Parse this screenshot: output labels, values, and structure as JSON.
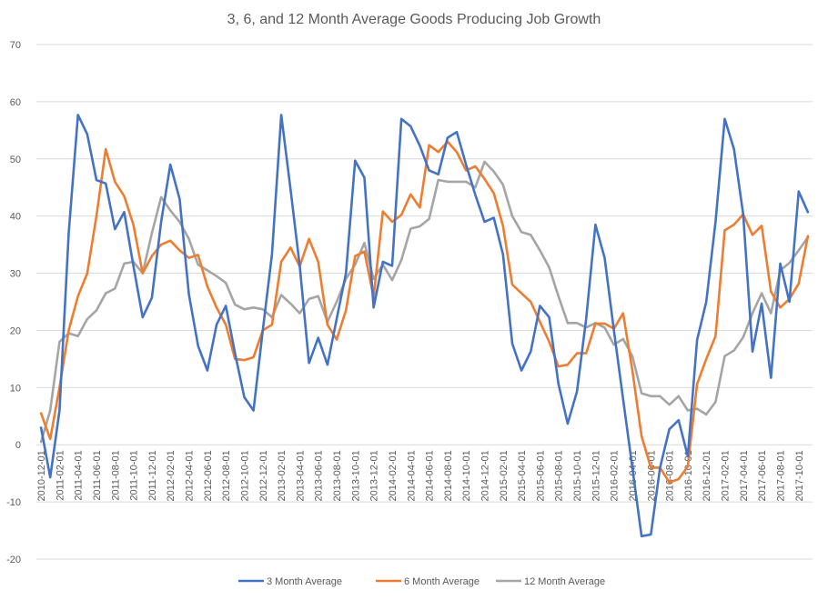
{
  "chart_data": {
    "type": "line",
    "title": "3, 6, and 12 Month Average Goods Producing Job Growth",
    "xlabel": "",
    "ylabel": "",
    "ylim": [
      -20,
      70
    ],
    "yticks": [
      -20,
      -10,
      0,
      10,
      20,
      30,
      40,
      50,
      60,
      70
    ],
    "grid": true,
    "legend_position": "bottom",
    "colors": {
      "3 Month Average": "#4472C4",
      "6 Month Average": "#ED7D31",
      "12 Month Average": "#A5A5A5",
      "grid": "#D9D9D9",
      "text": "#595959"
    },
    "x": [
      "2010-12-01",
      "2011-01-01",
      "2011-02-01",
      "2011-03-01",
      "2011-04-01",
      "2011-05-01",
      "2011-06-01",
      "2011-07-01",
      "2011-08-01",
      "2011-09-01",
      "2011-10-01",
      "2011-11-01",
      "2011-12-01",
      "2012-01-01",
      "2012-02-01",
      "2012-03-01",
      "2012-04-01",
      "2012-05-01",
      "2012-06-01",
      "2012-07-01",
      "2012-08-01",
      "2012-09-01",
      "2012-10-01",
      "2012-11-01",
      "2012-12-01",
      "2013-01-01",
      "2013-02-01",
      "2013-03-01",
      "2013-04-01",
      "2013-05-01",
      "2013-06-01",
      "2013-07-01",
      "2013-08-01",
      "2013-09-01",
      "2013-10-01",
      "2013-11-01",
      "2013-12-01",
      "2014-01-01",
      "2014-02-01",
      "2014-03-01",
      "2014-04-01",
      "2014-05-01",
      "2014-06-01",
      "2014-07-01",
      "2014-08-01",
      "2014-09-01",
      "2014-10-01",
      "2014-11-01",
      "2014-12-01",
      "2015-01-01",
      "2015-02-01",
      "2015-03-01",
      "2015-04-01",
      "2015-05-01",
      "2015-06-01",
      "2015-07-01",
      "2015-08-01",
      "2015-09-01",
      "2015-10-01",
      "2015-11-01",
      "2015-12-01",
      "2016-01-01",
      "2016-02-01",
      "2016-03-01",
      "2016-04-01",
      "2016-05-01",
      "2016-06-01",
      "2016-07-01",
      "2016-08-01",
      "2016-09-01",
      "2016-10-01",
      "2016-11-01",
      "2016-12-01",
      "2017-01-01",
      "2017-02-01",
      "2017-03-01",
      "2017-04-01",
      "2017-05-01",
      "2017-06-01",
      "2017-07-01",
      "2017-08-01",
      "2017-09-01",
      "2017-10-01",
      "2017-11-01"
    ],
    "series": [
      {
        "name": "3 Month Average",
        "values": [
          3,
          -5.7,
          6,
          37,
          57.7,
          54.3,
          46.3,
          45.7,
          37.7,
          40.7,
          31.3,
          22.3,
          25.7,
          39,
          49,
          43,
          26.3,
          17.3,
          13,
          21,
          24.3,
          16,
          8.3,
          6,
          20,
          33.3,
          57.7,
          44.7,
          31.3,
          14.3,
          18.7,
          14,
          22,
          30,
          49.7,
          46.7,
          24,
          32,
          31.3,
          57,
          55.7,
          52.3,
          48,
          47.3,
          53.7,
          54.7,
          49,
          43.7,
          39,
          39.7,
          33.3,
          17.7,
          13,
          16.3,
          24.3,
          22.3,
          10.7,
          3.7,
          9.3,
          22,
          38.5,
          32.7,
          20,
          8,
          -4,
          -16,
          -15.7,
          -4,
          2.7,
          4.3,
          -2,
          18.3,
          25,
          39,
          57,
          51.7,
          40.3,
          16.3,
          24.7,
          11.7,
          31.7,
          25,
          44.3,
          40.7
        ]
      },
      {
        "name": "6 Month Average",
        "values": [
          5.5,
          1,
          10,
          20,
          26,
          30,
          40,
          51.7,
          46,
          43.5,
          38.5,
          30,
          33,
          35,
          35.7,
          34,
          32.7,
          33.2,
          27.7,
          24,
          21,
          15,
          14.8,
          15.3,
          20,
          21,
          32,
          34.5,
          31.2,
          36,
          32,
          21,
          18.4,
          23.5,
          33,
          33.8,
          25.8,
          40.8,
          39,
          40.2,
          43.8,
          41.5,
          52.4,
          51.2,
          53,
          51.2,
          48,
          48.7,
          46.5,
          44,
          38.3,
          28,
          26.5,
          25,
          21.5,
          18,
          13.7,
          14,
          16,
          16,
          21.2,
          21.2,
          20.3,
          23,
          13,
          1.5,
          -4,
          -4,
          -6.6,
          -6,
          -3.8,
          10.6,
          15,
          19,
          37.5,
          38.5,
          40.3,
          36.7,
          38.3,
          26.8,
          24,
          25.5,
          28.2,
          36.5
        ]
      },
      {
        "name": "12 Month Average",
        "values": [
          0.5,
          6,
          18,
          19.5,
          19,
          22,
          23.5,
          26.5,
          27.3,
          31.7,
          32,
          30,
          37,
          43.3,
          41,
          39,
          36,
          31.5,
          30.5,
          29.5,
          28.3,
          24.5,
          23.7,
          24,
          23.7,
          22.3,
          26.2,
          24.7,
          23,
          25.5,
          26,
          21.5,
          25,
          29,
          31.5,
          35.3,
          29,
          31.5,
          28.8,
          32.3,
          37.8,
          38.2,
          39.5,
          46.3,
          46,
          46,
          46,
          45,
          49.5,
          47.8,
          45.5,
          40,
          37.2,
          36.7,
          34,
          31,
          26,
          21.3,
          21.3,
          20.5,
          21.3,
          20.5,
          17.5,
          18.5,
          15.5,
          9,
          8.5,
          8.5,
          7,
          8.5,
          6,
          6.3,
          5.3,
          7.5,
          15.5,
          16.5,
          18.8,
          23,
          26.5,
          23,
          30.5,
          31.8,
          34,
          36.3
        ]
      }
    ]
  }
}
